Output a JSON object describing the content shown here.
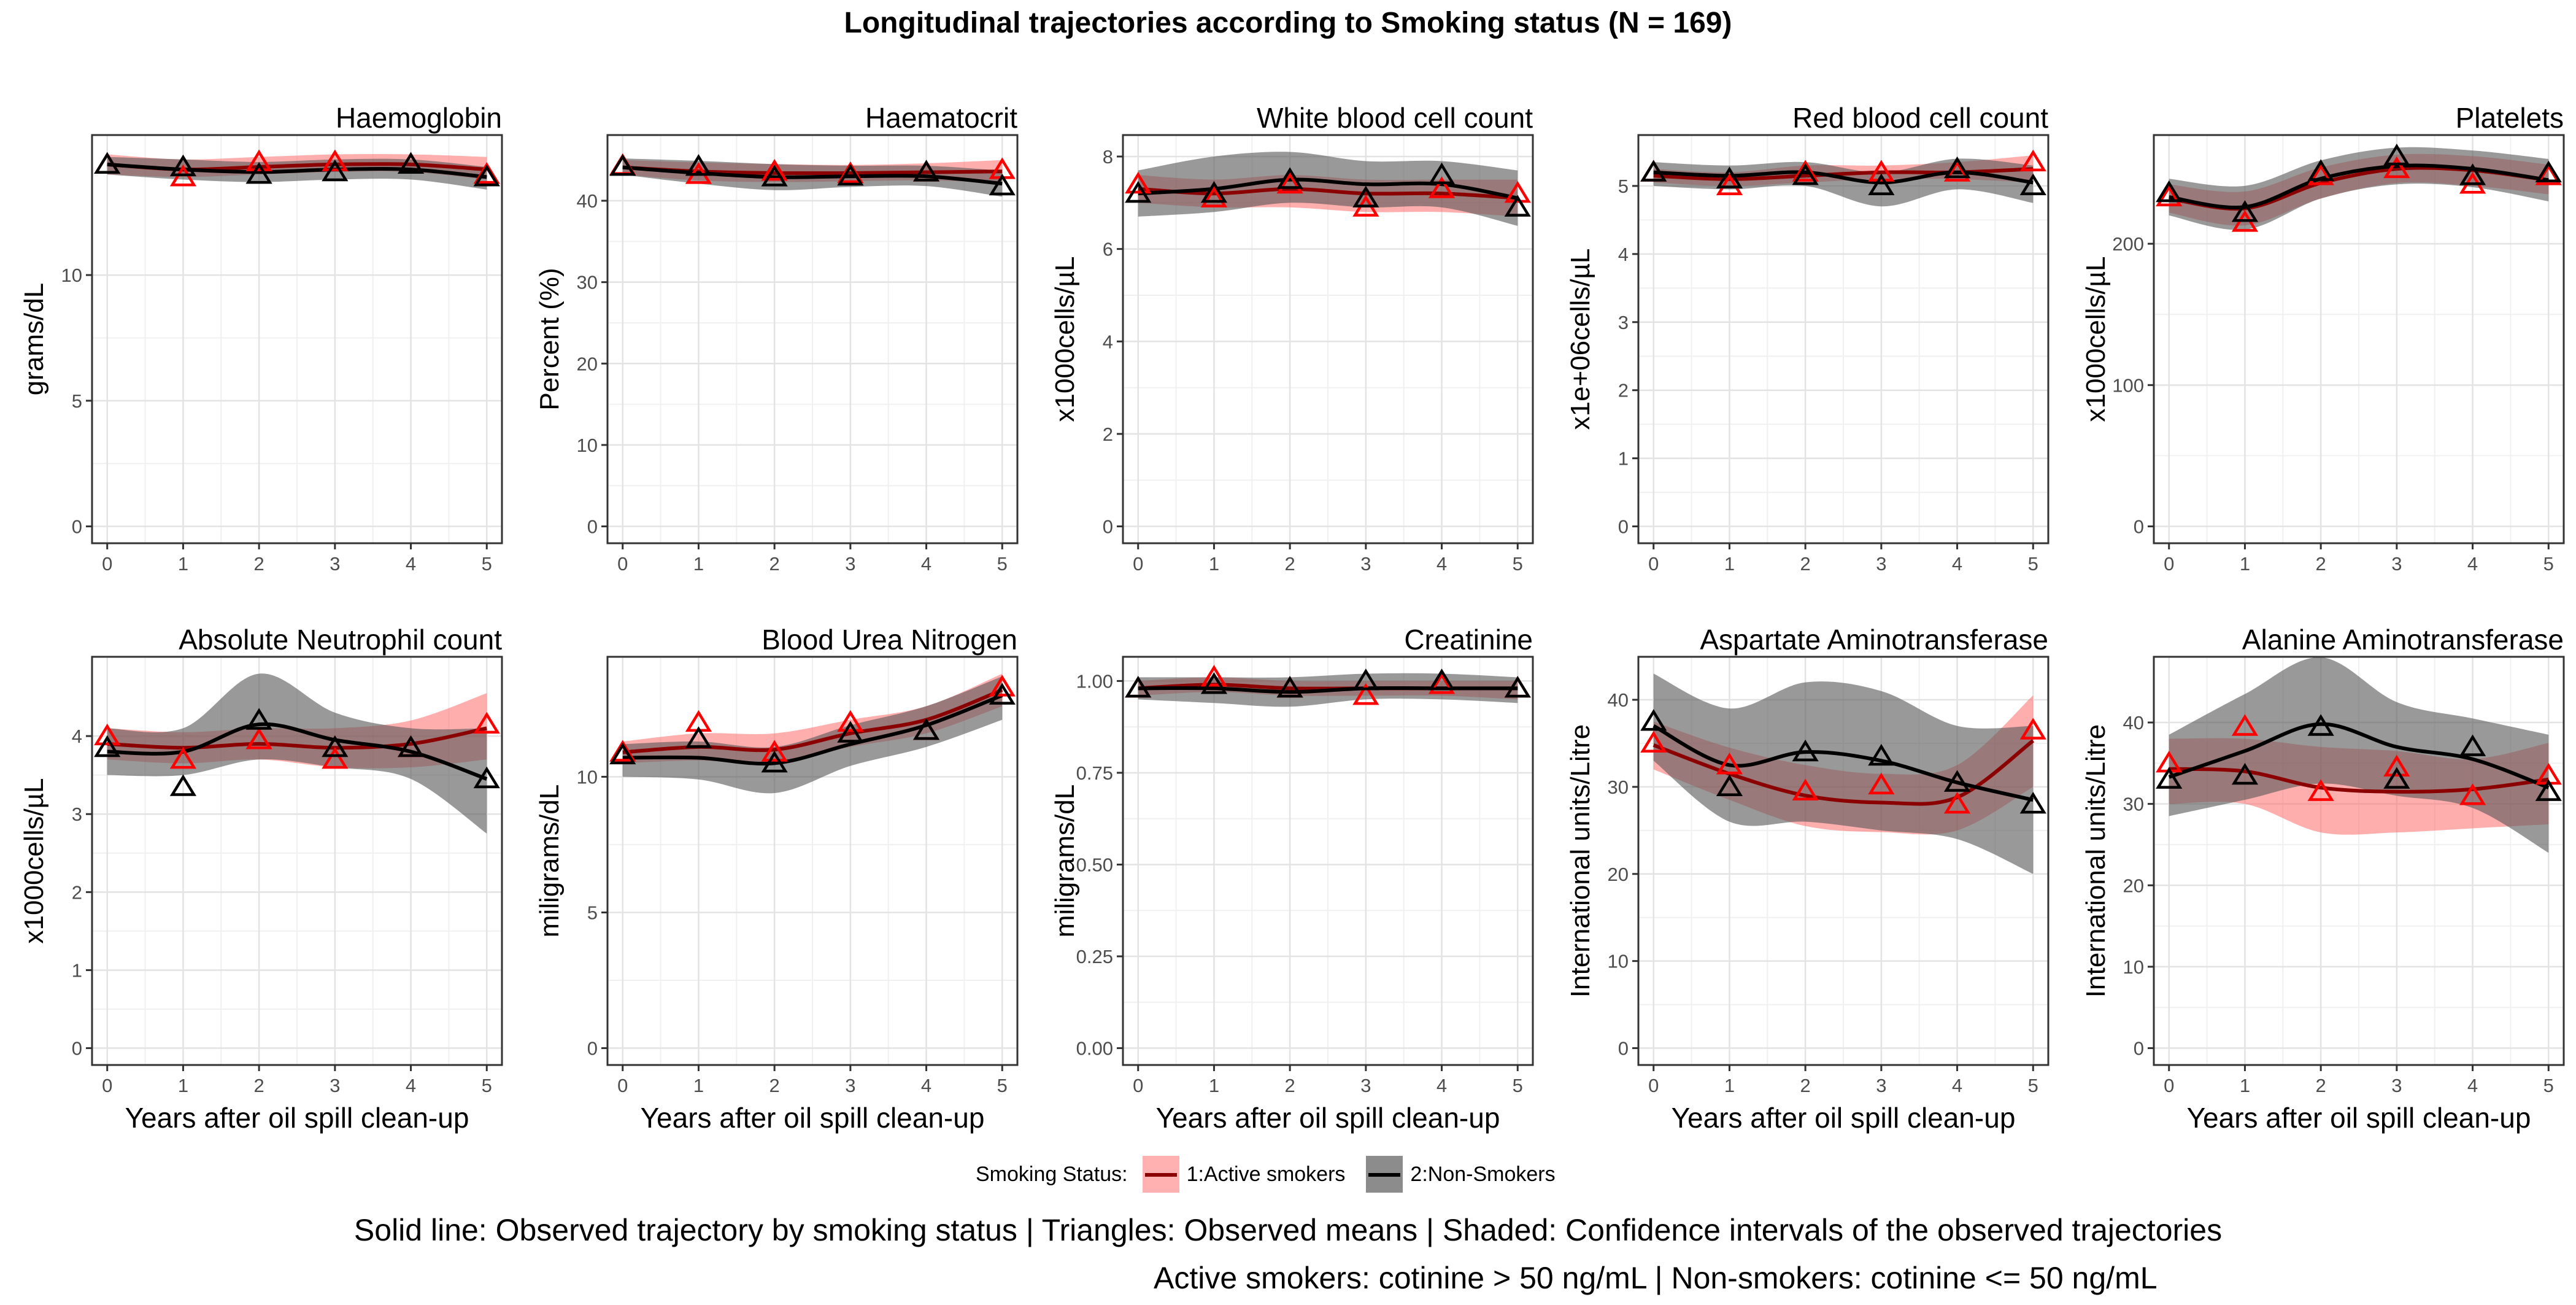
{
  "title": "Longitudinal trajectories according to Smoking status (N = 169)",
  "colors": {
    "active_line": "#8b0000",
    "active_point": "#ff0000",
    "active_ribbon": "#ff6b6b",
    "non_line": "#000000",
    "non_point": "#000000",
    "non_ribbon": "#555555"
  },
  "legend": {
    "title": "Smoking Status:",
    "entries": [
      {
        "label": "1:Active smokers",
        "key": "active"
      },
      {
        "label": "2:Non-Smokers",
        "key": "non"
      }
    ]
  },
  "caption_line1": "Solid line: Observed trajectory by smoking status | Triangles: Observed means | Shaded: Confidence intervals of the observed trajectories",
  "caption_line2": "Active smokers: cotinine > 50 ng/mL | Non-smokers: cotinine <= 50 ng/mL",
  "chart_data": [
    {
      "type": "line",
      "title": "Haemoglobin",
      "xlabel": "",
      "ylabel": "grams/dL",
      "x": [
        0,
        1,
        2,
        3,
        4,
        5
      ],
      "xticks": [
        "0",
        "1",
        "2",
        "3",
        "4",
        "5"
      ],
      "ylim": [
        0,
        14.9
      ],
      "yticks": [
        0,
        5,
        10
      ],
      "ytick_labels": [
        "0",
        "5",
        "10"
      ],
      "series": [
        {
          "name": "1:Active smokers",
          "key": "active",
          "means": [
            14.4,
            13.9,
            14.5,
            14.5,
            14.4,
            14.0
          ],
          "line": [
            14.4,
            14.2,
            14.3,
            14.4,
            14.4,
            14.2
          ],
          "lower": [
            14.0,
            13.9,
            14.0,
            14.1,
            14.1,
            13.8
          ],
          "upper": [
            14.8,
            14.6,
            14.7,
            14.8,
            14.8,
            14.7
          ]
        },
        {
          "name": "2:Non-Smokers",
          "key": "non",
          "means": [
            14.4,
            14.3,
            14.0,
            14.1,
            14.4,
            13.9
          ],
          "line": [
            14.4,
            14.2,
            14.1,
            14.2,
            14.2,
            13.9
          ],
          "lower": [
            14.0,
            13.8,
            13.7,
            13.8,
            13.8,
            13.4
          ],
          "upper": [
            14.7,
            14.6,
            14.5,
            14.6,
            14.6,
            14.3
          ]
        }
      ]
    },
    {
      "type": "line",
      "title": "Haematocrit",
      "xlabel": "",
      "ylabel": "Percent (%)",
      "x": [
        0,
        1,
        2,
        3,
        4,
        5
      ],
      "xticks": [
        "0",
        "1",
        "2",
        "3",
        "4",
        "5"
      ],
      "ylim": [
        0,
        46
      ],
      "yticks": [
        0,
        10,
        20,
        30,
        40
      ],
      "ytick_labels": [
        "0",
        "10",
        "20",
        "30",
        "40"
      ],
      "series": [
        {
          "name": "1:Active smokers",
          "key": "active",
          "means": [
            44.3,
            43.2,
            43.6,
            43.3,
            43.5,
            43.8
          ],
          "line": [
            44.1,
            43.6,
            43.4,
            43.4,
            43.5,
            43.6
          ],
          "lower": [
            43.2,
            42.5,
            42.3,
            42.4,
            42.5,
            42.2
          ],
          "upper": [
            45.0,
            44.7,
            44.5,
            44.4,
            44.6,
            45.0
          ]
        },
        {
          "name": "2:Non-Smokers",
          "key": "non",
          "means": [
            44.2,
            44.2,
            42.9,
            43.0,
            43.5,
            41.8
          ],
          "line": [
            44.1,
            43.4,
            42.9,
            43.0,
            43.0,
            42.1
          ],
          "lower": [
            43.2,
            42.1,
            41.3,
            41.7,
            41.8,
            40.5
          ],
          "upper": [
            45.2,
            44.9,
            44.5,
            44.3,
            44.3,
            43.7
          ]
        }
      ]
    },
    {
      "type": "line",
      "title": "White blood cell count",
      "xlabel": "",
      "ylabel": "x1000cells/µL",
      "x": [
        0,
        1,
        2,
        3,
        4,
        5
      ],
      "xticks": [
        "0",
        "1",
        "2",
        "3",
        "4",
        "5"
      ],
      "ylim": [
        0,
        8.1
      ],
      "yticks": [
        0,
        2,
        4,
        6,
        8
      ],
      "ytick_labels": [
        "0",
        "2",
        "4",
        "6",
        "8"
      ],
      "series": [
        {
          "name": "1:Active smokers",
          "key": "active",
          "means": [
            7.4,
            7.1,
            7.4,
            6.9,
            7.3,
            7.2
          ],
          "line": [
            7.3,
            7.2,
            7.3,
            7.2,
            7.2,
            7.1
          ],
          "lower": [
            7.0,
            6.9,
            6.9,
            6.8,
            6.8,
            6.7
          ],
          "upper": [
            7.6,
            7.5,
            7.6,
            7.5,
            7.5,
            7.5
          ]
        },
        {
          "name": "2:Non-Smokers",
          "key": "non",
          "means": [
            7.2,
            7.2,
            7.5,
            7.1,
            7.6,
            6.9
          ],
          "line": [
            7.2,
            7.3,
            7.5,
            7.4,
            7.4,
            7.1
          ],
          "lower": [
            6.7,
            6.8,
            7.0,
            6.9,
            6.9,
            6.5
          ],
          "upper": [
            7.7,
            8.0,
            8.1,
            7.9,
            7.9,
            7.7
          ]
        }
      ]
    },
    {
      "type": "line",
      "title": "Red blood cell count",
      "xlabel": "",
      "ylabel": "x1e+06cells/µL",
      "x": [
        0,
        1,
        2,
        3,
        4,
        5
      ],
      "xticks": [
        "0",
        "1",
        "2",
        "3",
        "4",
        "5"
      ],
      "ylim": [
        0,
        5.5
      ],
      "yticks": [
        0,
        1,
        2,
        3,
        4,
        5
      ],
      "ytick_labels": [
        "0",
        "1",
        "2",
        "3",
        "4",
        "5"
      ],
      "series": [
        {
          "name": "1:Active smokers",
          "key": "active",
          "means": [
            5.2,
            5.0,
            5.2,
            5.2,
            5.2,
            5.35
          ],
          "line": [
            5.15,
            5.1,
            5.15,
            5.2,
            5.2,
            5.25
          ],
          "lower": [
            5.05,
            5.0,
            5.05,
            5.1,
            5.1,
            5.05
          ],
          "upper": [
            5.25,
            5.2,
            5.3,
            5.3,
            5.35,
            5.45
          ]
        },
        {
          "name": "2:Non-Smokers",
          "key": "non",
          "means": [
            5.2,
            5.1,
            5.15,
            5.0,
            5.25,
            5.0
          ],
          "line": [
            5.2,
            5.15,
            5.2,
            5.05,
            5.2,
            5.05
          ],
          "lower": [
            5.0,
            4.95,
            5.0,
            4.7,
            4.95,
            4.75
          ],
          "upper": [
            5.35,
            5.3,
            5.35,
            5.2,
            5.4,
            5.3
          ]
        }
      ]
    },
    {
      "type": "line",
      "title": "Platelets",
      "xlabel": "",
      "ylabel": "x1000cells/µL",
      "x": [
        0,
        1,
        2,
        3,
        4,
        5
      ],
      "xticks": [
        "0",
        "1",
        "2",
        "3",
        "4",
        "5"
      ],
      "ylim": [
        0,
        265
      ],
      "yticks": [
        0,
        100,
        200
      ],
      "ytick_labels": [
        "0",
        "100",
        "200"
      ],
      "series": [
        {
          "name": "1:Active smokers",
          "key": "active",
          "means": [
            233,
            215,
            248,
            253,
            242,
            248
          ],
          "line": [
            232,
            225,
            243,
            253,
            252,
            245
          ],
          "lower": [
            222,
            213,
            232,
            243,
            241,
            235
          ],
          "upper": [
            242,
            237,
            254,
            263,
            262,
            256
          ]
        },
        {
          "name": "2:Non-Smokers",
          "key": "non",
          "means": [
            236,
            222,
            251,
            262,
            248,
            250
          ],
          "line": [
            233,
            226,
            246,
            255,
            253,
            245
          ],
          "lower": [
            220,
            210,
            232,
            242,
            240,
            230
          ],
          "upper": [
            246,
            241,
            259,
            268,
            266,
            260
          ]
        }
      ]
    },
    {
      "type": "line",
      "title": "Absolute Neutrophil count",
      "xlabel": "Years after oil spill clean-up",
      "ylabel": "x1000cells/µL",
      "x": [
        0,
        1,
        2,
        3,
        4,
        5
      ],
      "xticks": [
        "0",
        "1",
        "2",
        "3",
        "4",
        "5"
      ],
      "ylim": [
        0,
        4.8
      ],
      "yticks": [
        0,
        1,
        2,
        3,
        4
      ],
      "ytick_labels": [
        "0",
        "1",
        "2",
        "3",
        "4"
      ],
      "series": [
        {
          "name": "1:Active smokers",
          "key": "active",
          "means": [
            4.0,
            3.7,
            3.95,
            3.7,
            3.85,
            4.15
          ],
          "line": [
            3.9,
            3.85,
            3.9,
            3.85,
            3.9,
            4.1
          ],
          "lower": [
            3.7,
            3.65,
            3.7,
            3.6,
            3.6,
            3.7
          ],
          "upper": [
            4.1,
            4.05,
            4.1,
            4.1,
            4.2,
            4.55
          ]
        },
        {
          "name": "2:Non-Smokers",
          "key": "non",
          "means": [
            3.85,
            3.35,
            4.2,
            3.85,
            3.85,
            3.45
          ],
          "line": [
            3.8,
            3.8,
            4.15,
            3.95,
            3.8,
            3.45
          ],
          "lower": [
            3.5,
            3.5,
            3.7,
            3.6,
            3.45,
            2.75
          ],
          "upper": [
            4.1,
            4.1,
            4.8,
            4.3,
            4.1,
            4.1
          ]
        }
      ]
    },
    {
      "type": "line",
      "title": "Blood Urea Nitrogen",
      "xlabel": "Years after oil spill clean-up",
      "ylabel": "miligrams/dL",
      "x": [
        0,
        1,
        2,
        3,
        4,
        5
      ],
      "xticks": [
        "0",
        "1",
        "2",
        "3",
        "4",
        "5"
      ],
      "ylim": [
        0,
        13.8
      ],
      "yticks": [
        0,
        5,
        10
      ],
      "ytick_labels": [
        "0",
        "5",
        "10"
      ],
      "series": [
        {
          "name": "1:Active smokers",
          "key": "active",
          "means": [
            10.9,
            12.0,
            10.9,
            12.0,
            11.7,
            13.3
          ],
          "line": [
            10.9,
            11.1,
            11.0,
            11.6,
            12.1,
            13.2
          ],
          "lower": [
            10.5,
            10.6,
            10.5,
            11.1,
            11.6,
            12.6
          ],
          "upper": [
            11.3,
            11.6,
            11.6,
            12.1,
            12.6,
            13.8
          ]
        },
        {
          "name": "2:Non-Smokers",
          "key": "non",
          "means": [
            10.8,
            11.4,
            10.5,
            11.6,
            11.7,
            13.0
          ],
          "line": [
            10.7,
            10.7,
            10.5,
            11.2,
            11.9,
            13.0
          ],
          "lower": [
            10.0,
            9.9,
            9.4,
            10.4,
            11.1,
            12.1
          ],
          "upper": [
            11.2,
            11.3,
            11.1,
            11.9,
            12.6,
            13.7
          ]
        }
      ]
    },
    {
      "type": "line",
      "title": "Creatinine",
      "xlabel": "Years after oil spill clean-up",
      "ylabel": "miligrams/dL",
      "x": [
        0,
        1,
        2,
        3,
        4,
        5
      ],
      "xticks": [
        "0",
        "1",
        "2",
        "3",
        "4",
        "5"
      ],
      "ylim": [
        0,
        1.02
      ],
      "yticks": [
        0,
        0.25,
        0.5,
        0.75,
        1.0
      ],
      "ytick_labels": [
        "0.00",
        "0.25",
        "0.50",
        "0.75",
        "1.00"
      ],
      "series": [
        {
          "name": "1:Active smokers",
          "key": "active",
          "means": [
            0.98,
            1.01,
            0.98,
            0.96,
            0.99,
            0.98
          ],
          "line": [
            0.98,
            0.99,
            0.98,
            0.98,
            0.98,
            0.98
          ],
          "lower": [
            0.96,
            0.97,
            0.96,
            0.96,
            0.96,
            0.95
          ],
          "upper": [
            1.0,
            1.01,
            1.0,
            1.0,
            1.0,
            1.0
          ]
        },
        {
          "name": "2:Non-Smokers",
          "key": "non",
          "means": [
            0.98,
            0.99,
            0.98,
            1.0,
            1.0,
            0.98
          ],
          "line": [
            0.98,
            0.98,
            0.97,
            0.98,
            0.98,
            0.98
          ],
          "lower": [
            0.95,
            0.94,
            0.93,
            0.95,
            0.95,
            0.94
          ],
          "upper": [
            1.01,
            1.01,
            1.01,
            1.02,
            1.02,
            1.01
          ]
        }
      ]
    },
    {
      "type": "line",
      "title": "Aspartate Aminotransferase",
      "xlabel": "Years after oil spill clean-up",
      "ylabel": "International units/Litre",
      "x": [
        0,
        1,
        2,
        3,
        4,
        5
      ],
      "xticks": [
        "0",
        "1",
        "2",
        "3",
        "4",
        "5"
      ],
      "ylim": [
        0,
        43
      ],
      "yticks": [
        0,
        10,
        20,
        30,
        40
      ],
      "ytick_labels": [
        "0",
        "10",
        "20",
        "30",
        "40"
      ],
      "series": [
        {
          "name": "1:Active smokers",
          "key": "active",
          "means": [
            35.0,
            32.5,
            29.5,
            30.2,
            28.0,
            36.5
          ],
          "line": [
            34.8,
            31.5,
            29.0,
            28.2,
            28.8,
            35.3
          ],
          "lower": [
            32.0,
            28.5,
            25.5,
            24.8,
            25.0,
            30.0
          ],
          "upper": [
            37.5,
            34.5,
            32.5,
            31.5,
            32.5,
            40.5
          ]
        },
        {
          "name": "2:Non-Smokers",
          "key": "non",
          "means": [
            37.5,
            30.0,
            34.0,
            33.5,
            30.5,
            28.0
          ],
          "line": [
            37.0,
            32.5,
            34.0,
            33.0,
            30.5,
            28.5
          ],
          "lower": [
            33.0,
            26.0,
            26.0,
            25.0,
            24.0,
            20.0
          ],
          "upper": [
            43.0,
            39.0,
            42.0,
            41.0,
            37.0,
            37.0
          ]
        }
      ]
    },
    {
      "type": "line",
      "title": "Alanine Aminotransferase",
      "xlabel": "Years after oil spill clean-up",
      "ylabel": "International units/Litre",
      "x": [
        0,
        1,
        2,
        3,
        4,
        5
      ],
      "xticks": [
        "0",
        "1",
        "2",
        "3",
        "4",
        "5"
      ],
      "ylim": [
        0,
        46
      ],
      "yticks": [
        0,
        10,
        20,
        30,
        40
      ],
      "ytick_labels": [
        "0",
        "10",
        "20",
        "30",
        "40"
      ],
      "series": [
        {
          "name": "1:Active smokers",
          "key": "active",
          "means": [
            35.0,
            39.5,
            31.5,
            34.5,
            31.0,
            33.5
          ],
          "line": [
            34.3,
            34.0,
            32.0,
            31.5,
            31.8,
            33.0
          ],
          "lower": [
            30.0,
            30.0,
            26.5,
            26.5,
            27.0,
            27.5
          ],
          "upper": [
            38.0,
            38.0,
            37.0,
            36.5,
            35.5,
            37.5
          ]
        },
        {
          "name": "2:Non-Smokers",
          "key": "non",
          "means": [
            33.0,
            33.5,
            39.5,
            33.0,
            37.0,
            31.5
          ],
          "line": [
            33.3,
            36.5,
            39.8,
            37.0,
            35.5,
            32.0
          ],
          "lower": [
            28.5,
            30.5,
            32.5,
            31.0,
            29.5,
            24.0
          ],
          "upper": [
            38.5,
            43.5,
            48.0,
            42.5,
            40.5,
            38.5
          ]
        }
      ]
    }
  ]
}
